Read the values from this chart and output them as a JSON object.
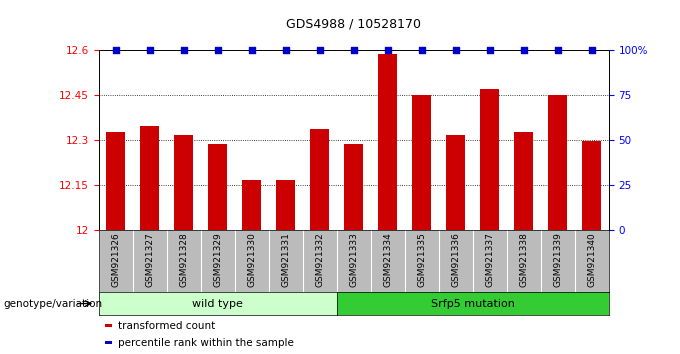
{
  "title": "GDS4988 / 10528170",
  "samples": [
    "GSM921326",
    "GSM921327",
    "GSM921328",
    "GSM921329",
    "GSM921330",
    "GSM921331",
    "GSM921332",
    "GSM921333",
    "GSM921334",
    "GSM921335",
    "GSM921336",
    "GSM921337",
    "GSM921338",
    "GSM921339",
    "GSM921340"
  ],
  "transformed_counts": [
    12.325,
    12.345,
    12.315,
    12.285,
    12.165,
    12.165,
    12.335,
    12.285,
    12.585,
    12.45,
    12.315,
    12.47,
    12.325,
    12.45,
    12.295
  ],
  "ylim_left": [
    12.0,
    12.6
  ],
  "ylim_right": [
    0,
    100
  ],
  "yticks_left": [
    12.0,
    12.15,
    12.3,
    12.45,
    12.6
  ],
  "yticks_right": [
    0,
    25,
    50,
    75,
    100
  ],
  "ytick_labels_left": [
    "12",
    "12.15",
    "12.3",
    "12.45",
    "12.6"
  ],
  "ytick_labels_right": [
    "0",
    "25",
    "50",
    "75",
    "100%"
  ],
  "bar_color": "#cc0000",
  "dot_color": "#0000cc",
  "groups": [
    {
      "label": "wild type",
      "start": 0,
      "end": 7,
      "color": "#ccffcc"
    },
    {
      "label": "Srfp5 mutation",
      "start": 7,
      "end": 15,
      "color": "#33cc33"
    }
  ],
  "legend_items": [
    {
      "color": "#cc0000",
      "label": "transformed count"
    },
    {
      "color": "#0000cc",
      "label": "percentile rank within the sample"
    }
  ],
  "genotype_label": "genotype/variation",
  "bar_width": 0.55,
  "background_color": "#ffffff",
  "tick_area_bg": "#bbbbbb",
  "title_fontsize": 9,
  "tick_fontsize": 6.5,
  "ytick_fontsize": 7.5,
  "group_fontsize": 8,
  "legend_fontsize": 7.5,
  "geno_fontsize": 7.5
}
